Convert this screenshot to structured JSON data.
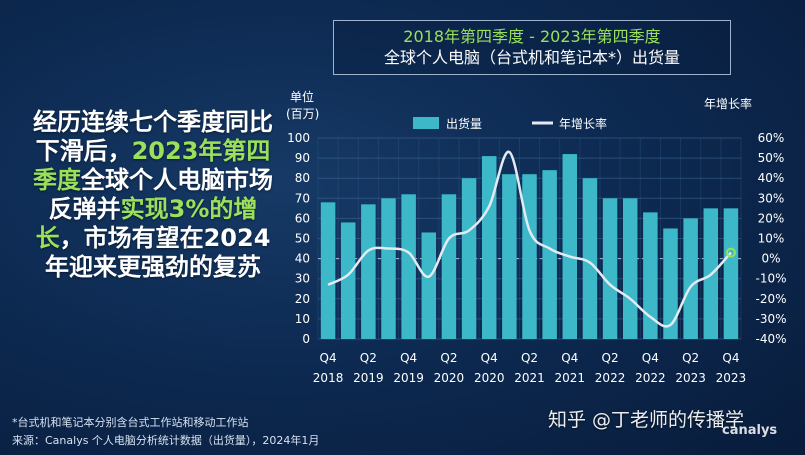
{
  "header": {
    "title_line1": "2018年第四季度 - 2023年第四季度",
    "title_line2": "全球个人电脑（台式机和笔记本*）出货量"
  },
  "headline": {
    "part1": "经历连续七个季度同比下滑后，",
    "part2": "2023年第四季度",
    "part3": "全球个人电脑市场反弹并",
    "part4": "实现3%的增长",
    "part5": "，市场有望在2024年迎来更强劲的复苏"
  },
  "footnotes": {
    "note": "*台式机和笔记本分别含台式工作站和移动工作站",
    "source": "来源：Canalys 个人电脑分析统计数据（出货量），2024年1月"
  },
  "watermark": "知乎 @丁老师的传播学",
  "brand": "canalys",
  "colors": {
    "bar": "#3cb8c8",
    "line": "#e3eaf2",
    "accent": "#9be05a",
    "grid": "#3f6a98"
  },
  "chart_data": {
    "type": "bar",
    "title": "2018年第四季度 - 2023年第四季度 全球个人电脑（台式机和笔记本*）出货量",
    "left_axis_label": "单位\n(百万)",
    "right_axis_label": "年增长率",
    "ylim": [
      0,
      100
    ],
    "y_ticks": [
      0,
      10,
      20,
      30,
      40,
      50,
      60,
      70,
      80,
      90,
      100
    ],
    "y2lim": [
      -40,
      60
    ],
    "y2_ticks": [
      "-40%",
      "-30%",
      "-20%",
      "-10%",
      "0%",
      "10%",
      "20%",
      "30%",
      "40%",
      "50%",
      "60%"
    ],
    "legend": [
      "出货量",
      "年增长率"
    ],
    "legend_position": "top",
    "x_tick_labels": [
      {
        "q": "Q4",
        "y": "2018"
      },
      {
        "q": "Q2",
        "y": "2019"
      },
      {
        "q": "Q4",
        "y": "2019"
      },
      {
        "q": "Q2",
        "y": "2020"
      },
      {
        "q": "Q4",
        "y": "2020"
      },
      {
        "q": "Q2",
        "y": "2021"
      },
      {
        "q": "Q4",
        "y": "2021"
      },
      {
        "q": "Q2",
        "y": "2022"
      },
      {
        "q": "Q4",
        "y": "2022"
      },
      {
        "q": "Q2",
        "y": "2023"
      },
      {
        "q": "Q4",
        "y": "2023"
      }
    ],
    "categories": [
      "Q4 2018",
      "Q1 2019",
      "Q2 2019",
      "Q3 2019",
      "Q4 2019",
      "Q1 2020",
      "Q2 2020",
      "Q3 2020",
      "Q4 2020",
      "Q1 2021",
      "Q2 2021",
      "Q3 2021",
      "Q4 2021",
      "Q1 2022",
      "Q2 2022",
      "Q3 2022",
      "Q4 2022",
      "Q1 2023",
      "Q2 2023",
      "Q3 2023",
      "Q4 2023"
    ],
    "series": [
      {
        "name": "出货量",
        "axis": "left",
        "type": "bar",
        "values": [
          68,
          58,
          67,
          70,
          72,
          53,
          72,
          80,
          91,
          82,
          82,
          84,
          92,
          80,
          70,
          70,
          63,
          55,
          60,
          65,
          65
        ]
      },
      {
        "name": "年增长率",
        "axis": "right",
        "type": "line",
        "unit": "%",
        "values": [
          -13,
          -8,
          4,
          5,
          3,
          -9,
          10,
          14,
          26,
          53,
          14,
          5,
          1,
          -2,
          -13,
          -20,
          -29,
          -33,
          -14,
          -8,
          3
        ]
      }
    ]
  }
}
